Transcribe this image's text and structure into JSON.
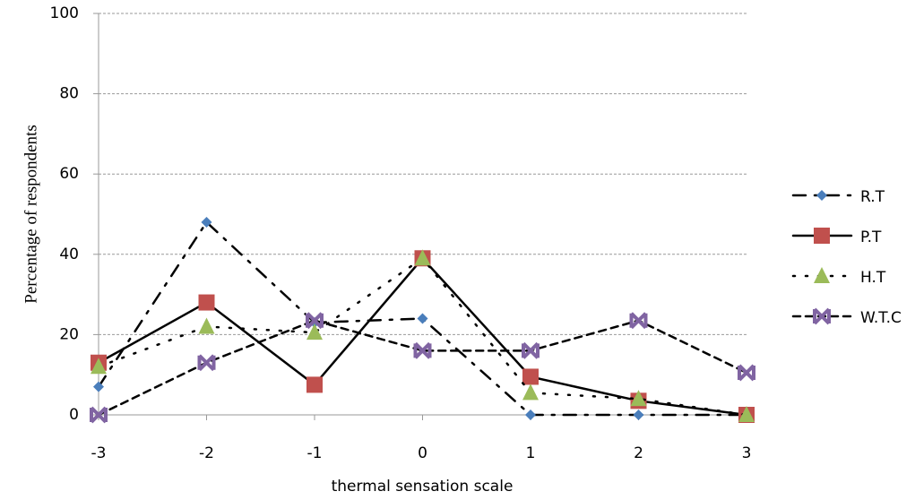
{
  "chart_data": {
    "type": "line",
    "x_label": "thermal sensation scale",
    "y_label": "Percentage of  respondents",
    "x": [
      -3,
      -2,
      -1,
      0,
      1,
      2,
      3
    ],
    "xlim": [
      -3,
      3
    ],
    "xticks": [
      -3,
      -2,
      -1,
      0,
      1,
      2,
      3
    ],
    "ylim": [
      0,
      100
    ],
    "yticks": [
      0,
      20,
      40,
      60,
      80,
      100
    ],
    "grid": true,
    "legend": "right",
    "series": [
      {
        "name": "R.T",
        "color": "#4a7ebb",
        "marker": "diamond",
        "line_style": "dashdot",
        "values": [
          7,
          48,
          23,
          24,
          0,
          0,
          0
        ]
      },
      {
        "name": "P.T",
        "color": "#c0504d",
        "marker": "square",
        "line_style": "solid",
        "values": [
          13,
          28,
          7.5,
          39,
          9.5,
          3.5,
          0
        ]
      },
      {
        "name": "H.T",
        "color": "#9bbb59",
        "marker": "triangle",
        "line_style": "dotted",
        "values": [
          12,
          22,
          20.5,
          39,
          5.5,
          4,
          0
        ]
      },
      {
        "name": "W.T.C",
        "color": "#8064a2",
        "marker": "star",
        "line_style": "dashed",
        "values": [
          0,
          13,
          23.5,
          16,
          16,
          23.5,
          10.5
        ]
      }
    ]
  }
}
